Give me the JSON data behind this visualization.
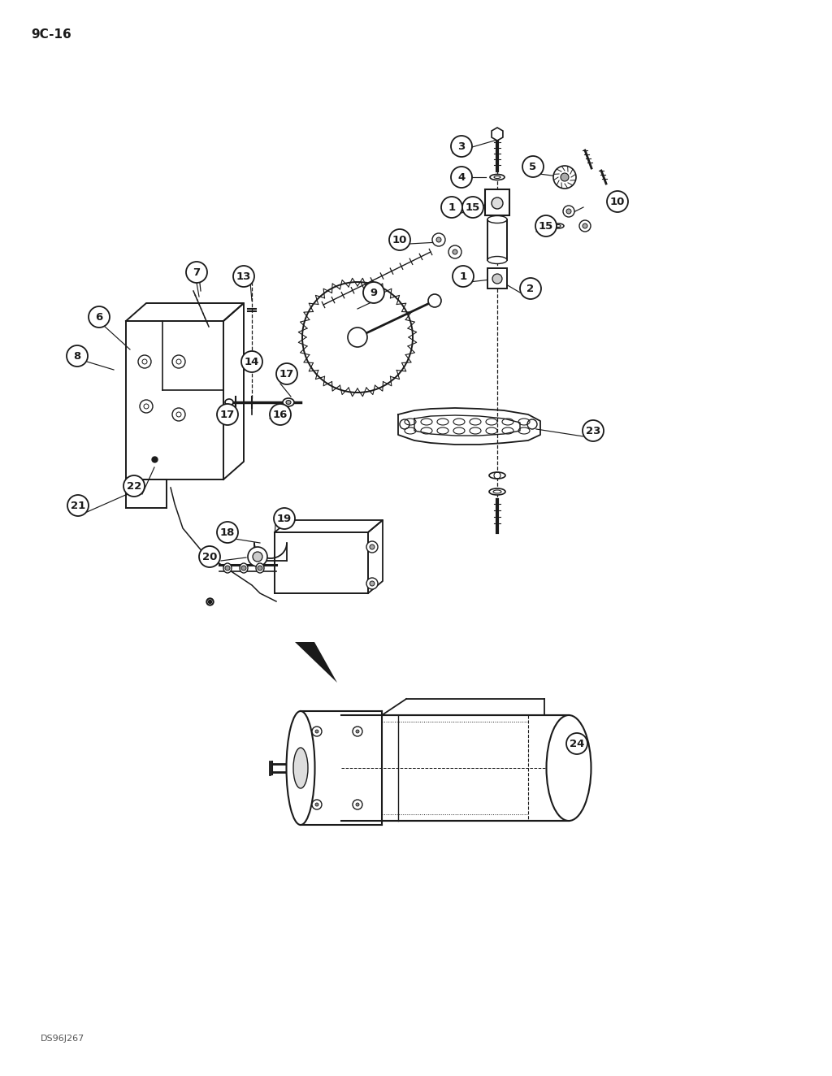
{
  "page_label": "9C-16",
  "footer_label": "DS96J267",
  "bg_color": "#ffffff",
  "line_color": "#1a1a1a",
  "fig_w": 10.24,
  "fig_h": 13.24,
  "dpi": 100
}
